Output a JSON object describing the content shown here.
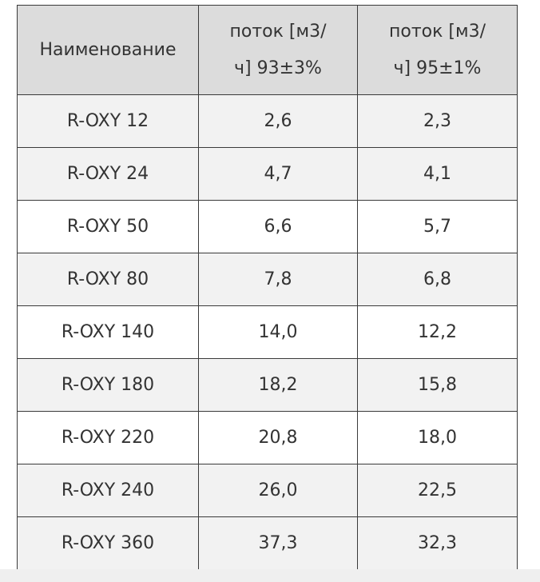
{
  "table": {
    "header": [
      "Наименование",
      [
        "поток [м3/",
        "ч] 93±3%"
      ],
      [
        "поток [м3/",
        "ч] 95±1%"
      ]
    ],
    "rows": [
      [
        "R-OXY 12",
        "2,6",
        "2,3"
      ],
      [
        "R-OXY 24",
        "4,7",
        "4,1"
      ],
      [
        "R-OXY 50",
        "6,6",
        "5,7"
      ],
      [
        "R-OXY 80",
        "7,8",
        "6,8"
      ],
      [
        "R-OXY 140",
        "14,0",
        "12,2"
      ],
      [
        "R-OXY 180",
        "18,2",
        "15,8"
      ],
      [
        "R-OXY 220",
        "20,8",
        "18,0"
      ],
      [
        "R-OXY 240",
        "26,0",
        "22,5"
      ],
      [
        "R-OXY 360",
        "37,3",
        "32,3"
      ]
    ]
  }
}
